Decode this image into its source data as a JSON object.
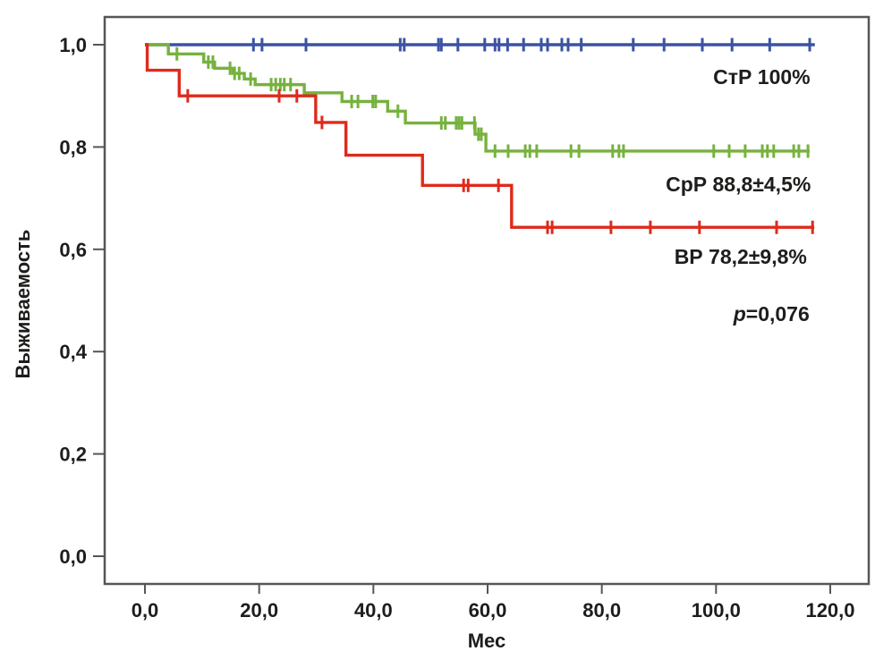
{
  "figure": {
    "background": "#ffffff",
    "frame_color": "#55565a",
    "text_color": "#1d1d1b"
  },
  "chart_data": {
    "type": "line",
    "subtype": "kaplan-meier-step-survival",
    "title": "",
    "xlabel": "Мес",
    "ylabel": "Выживаемость",
    "xlim": [
      -7,
      127
    ],
    "ylim": [
      -0.06,
      1.055
    ],
    "grid": false,
    "legend_position": "inline-right-annotations",
    "x_ticks": [
      {
        "value": 0,
        "label": "0,0"
      },
      {
        "value": 20,
        "label": "20,0"
      },
      {
        "value": 40,
        "label": "40,0"
      },
      {
        "value": 60,
        "label": "60,0"
      },
      {
        "value": 80,
        "label": "80,0"
      },
      {
        "value": 100,
        "label": "100,0"
      },
      {
        "value": 120,
        "label": "120,0"
      }
    ],
    "y_ticks": [
      {
        "value": 0.0,
        "label": "0,0"
      },
      {
        "value": 0.2,
        "label": "0,2"
      },
      {
        "value": 0.4,
        "label": "0,4"
      },
      {
        "value": 0.6,
        "label": "0,6"
      },
      {
        "value": 0.8,
        "label": "0,8"
      },
      {
        "value": 1.0,
        "label": "1,0"
      }
    ],
    "series": [
      {
        "name": "СтР",
        "label": "СтР 100%",
        "color": "#3b52a4",
        "end_month": 117.3,
        "steps": [
          [
            0,
            1.0
          ]
        ],
        "censor_months": [
          19.0,
          20.5,
          28.2,
          44.7,
          45.4,
          51.4,
          51.9,
          54.8,
          59.5,
          61.3,
          62.0,
          63.5,
          66.3,
          69.4,
          70.5,
          73.0,
          74.1,
          76.4,
          85.5,
          90.9,
          97.6,
          102.8,
          109.4,
          116.4
        ],
        "label_anchor": {
          "month": 108.0,
          "value": 0.937
        }
      },
      {
        "name": "СрР",
        "label": "СрР 88,8±4,5%",
        "color": "#76b23f",
        "end_month": 116.4,
        "steps": [
          [
            0,
            1.0
          ],
          [
            4.1,
            0.982
          ],
          [
            10.3,
            0.966
          ],
          [
            12.2,
            0.954
          ],
          [
            15.4,
            0.944
          ],
          [
            17.4,
            0.933
          ],
          [
            19.3,
            0.922
          ],
          [
            27.9,
            0.906
          ],
          [
            34.5,
            0.889
          ],
          [
            42.5,
            0.87
          ],
          [
            45.6,
            0.847
          ],
          [
            57.8,
            0.825
          ],
          [
            59.7,
            0.792
          ]
        ],
        "censor_months": [
          5.6,
          11.1,
          11.9,
          14.9,
          15.7,
          16.5,
          18.5,
          22.1,
          22.9,
          23.7,
          24.4,
          25.5,
          36.2,
          37.3,
          39.9,
          40.4,
          44.3,
          51.9,
          52.6,
          54.5,
          55.0,
          55.5,
          57.7,
          58.4,
          58.9,
          61.3,
          63.6,
          66.6,
          67.4,
          68.6,
          74.6,
          76.0,
          81.9,
          83.0,
          83.8,
          99.6,
          102.3,
          105.1,
          108.1,
          109.0,
          110.1,
          113.6,
          114.5,
          116.1
        ],
        "label_anchor": {
          "month": 103.9,
          "value": 0.727
        }
      },
      {
        "name": "ВР",
        "label": "ВР 78,2±9,8%",
        "color": "#df2a1b",
        "end_month": 117.2,
        "steps": [
          [
            0,
            1.0
          ],
          [
            0.4,
            0.95
          ],
          [
            6.0,
            0.9
          ],
          [
            29.9,
            0.848
          ],
          [
            35.2,
            0.784
          ],
          [
            48.6,
            0.725
          ],
          [
            64.2,
            0.643
          ]
        ],
        "censor_months": [
          7.5,
          23.5,
          26.6,
          31.0,
          55.8,
          56.6,
          61.9,
          70.5,
          71.3,
          81.6,
          88.5,
          97.1,
          110.6,
          116.9
        ],
        "label_anchor": {
          "month": 104.3,
          "value": 0.586
        }
      }
    ],
    "annotations": [
      {
        "italic": "p",
        "text": "=0,076",
        "anchor": {
          "month": 109.7,
          "value": 0.474
        }
      }
    ]
  }
}
